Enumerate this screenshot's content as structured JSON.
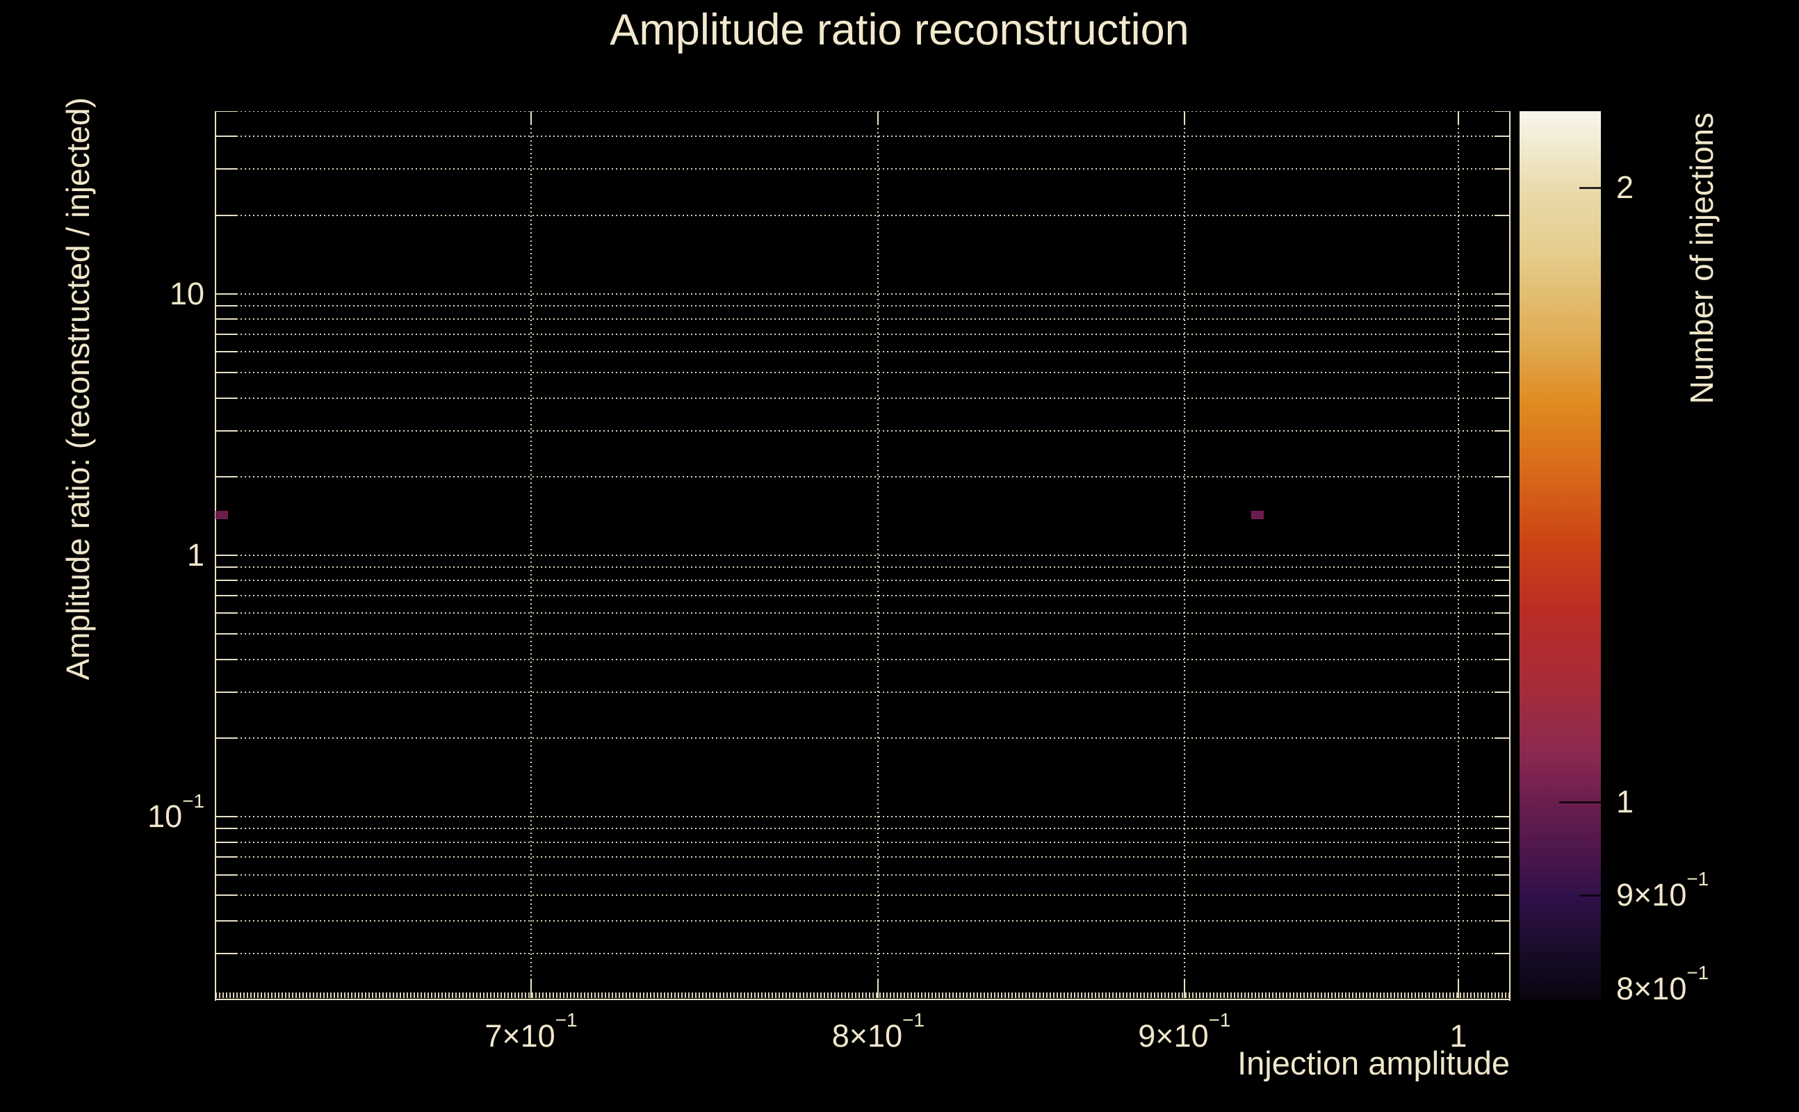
{
  "figure": {
    "title": "Amplitude ratio reconstruction",
    "background_color": "#000000",
    "text_color": "#f0e7cb",
    "grid_color": "#ece4c6",
    "frame_color": "#e9e1c3"
  },
  "chart_data": {
    "type": "heatmap",
    "title": "Amplitude ratio reconstruction",
    "xlabel": "Injection amplitude",
    "ylabel": "Amplitude ratio: (reconstructed / injected)",
    "colorbar_label": "Number of injections",
    "x_scale": "log",
    "y_scale": "log",
    "z_scale": "log",
    "xlim": [
      0.62,
      1.02
    ],
    "ylim": [
      0.02,
      50
    ],
    "zlim": [
      0.8,
      2.18
    ],
    "grid": true,
    "x_ticks": [
      {
        "v": 0.7,
        "base": "7×10",
        "exp": "−1"
      },
      {
        "v": 0.8,
        "base": "8×10",
        "exp": "−1"
      },
      {
        "v": 0.9,
        "base": "9×10",
        "exp": "−1"
      },
      {
        "v": 1,
        "base": "1",
        "exp": ""
      }
    ],
    "y_ticks": [
      {
        "v": 10,
        "base": "10",
        "exp": ""
      },
      {
        "v": 1,
        "base": "1",
        "exp": ""
      },
      {
        "v": 0.1,
        "base": "10",
        "exp": "−1"
      }
    ],
    "z_ticks": [
      {
        "v": 2,
        "base": "2",
        "exp": "",
        "major": false
      },
      {
        "v": 1,
        "base": "1",
        "exp": "",
        "major": true
      },
      {
        "v": 0.9,
        "base": "9×10",
        "exp": "−1",
        "major": false
      },
      {
        "v": 0.8,
        "base": "8×10",
        "exp": "−1",
        "major": false
      }
    ],
    "minor_mantissas": [
      2,
      3,
      4,
      5,
      6,
      7,
      8,
      9
    ],
    "bins": [
      {
        "x_edges": [
          0.62,
          0.623
        ],
        "y_edges": [
          1.375,
          1.48
        ],
        "count": 1
      },
      {
        "x_edges": [
          0.9235,
          0.928
        ],
        "y_edges": [
          1.375,
          1.48
        ],
        "count": 1
      }
    ],
    "colormap_stops": [
      [
        0.0,
        "#0a0410"
      ],
      [
        0.045,
        "#150a24"
      ],
      [
        0.116,
        "#30114a"
      ],
      [
        0.221,
        "#6b1d4e"
      ],
      [
        0.28,
        "#8c2a50"
      ],
      [
        0.36,
        "#a82c38"
      ],
      [
        0.44,
        "#bb2d24"
      ],
      [
        0.515,
        "#cc4414"
      ],
      [
        0.59,
        "#d7681a"
      ],
      [
        0.67,
        "#e08a20"
      ],
      [
        0.735,
        "#dfa94f"
      ],
      [
        0.84,
        "#e5cd8c"
      ],
      [
        0.906,
        "#e9d9a9"
      ],
      [
        0.977,
        "#f4efdd"
      ],
      [
        1.0,
        "#f8f5ec"
      ]
    ]
  }
}
